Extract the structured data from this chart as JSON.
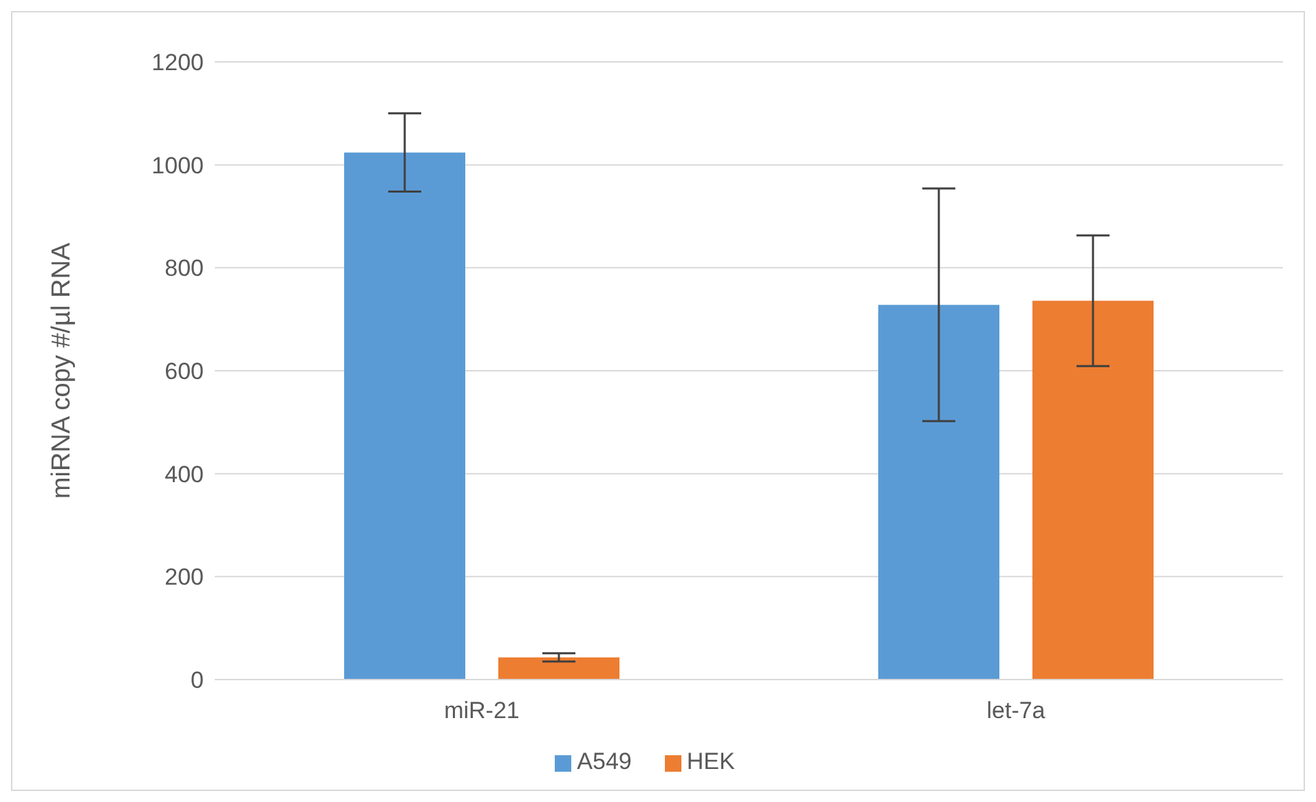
{
  "chart_data": {
    "type": "bar",
    "ylabel": "miRNA copy #/µl RNA",
    "categories": [
      "miR-21",
      "let-7a"
    ],
    "series": [
      {
        "name": "A549",
        "color": "#5b9bd5",
        "values": [
          1024,
          728
        ],
        "errors": [
          76,
          226
        ]
      },
      {
        "name": "HEK",
        "color": "#ed7d31",
        "values": [
          43,
          736
        ],
        "errors": [
          8,
          127
        ]
      }
    ],
    "ylim": [
      0,
      1200
    ],
    "yticks": [
      0,
      200,
      400,
      600,
      800,
      1000,
      1200
    ],
    "grid": "y",
    "legend": "bottom"
  }
}
